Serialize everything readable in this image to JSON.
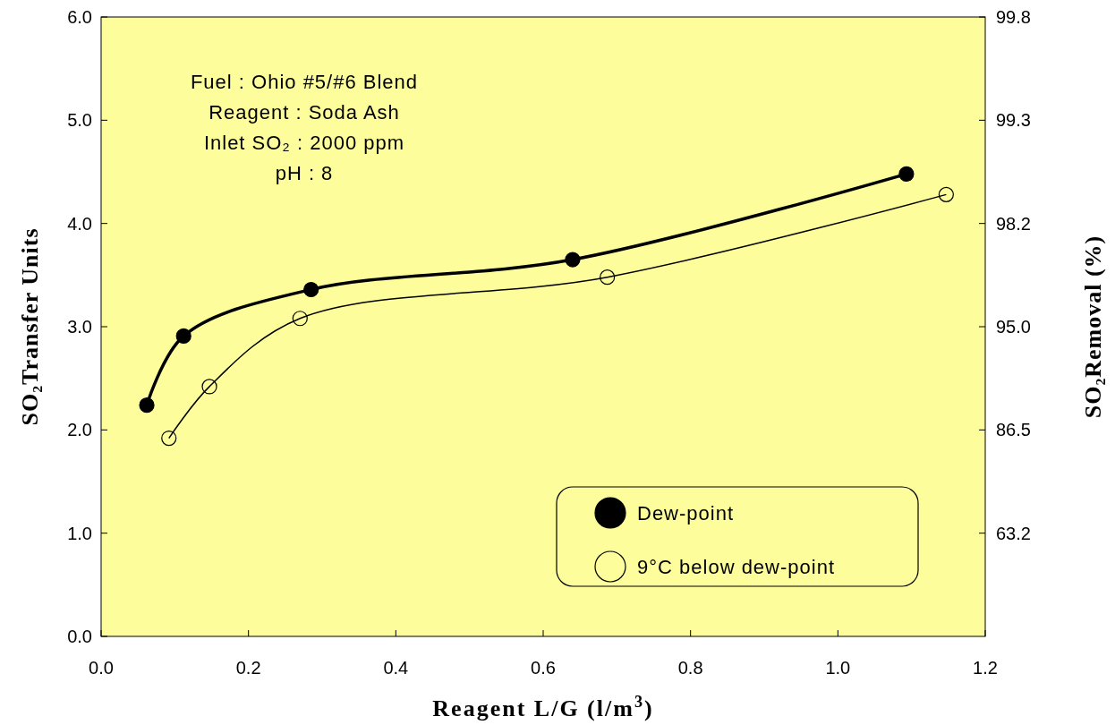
{
  "chart_data": {
    "type": "line",
    "xlabel": "Reagent L/G (l/m$^{3}$)",
    "ylabel": "SO₂Transfer Units",
    "y2label": "SO₂Removal (%)",
    "xlim": [
      0,
      1.2
    ],
    "xticks": [
      {
        "value": 0,
        "label": "0.0"
      },
      {
        "value": 0.2,
        "label": "0.2"
      },
      {
        "value": 0.4,
        "label": "0.4"
      },
      {
        "value": 0.6,
        "label": "0.6"
      },
      {
        "value": 0.8,
        "label": "0.8"
      },
      {
        "value": 1,
        "label": "1.0"
      },
      {
        "value": 1.2,
        "label": "1.2"
      }
    ],
    "ylim": [
      0,
      6
    ],
    "yticks": [
      {
        "value": 0,
        "label": "0.0"
      },
      {
        "value": 1,
        "label": "1.0"
      },
      {
        "value": 2,
        "label": "2.0"
      },
      {
        "value": 3,
        "label": "3.0"
      },
      {
        "value": 4,
        "label": "4.0"
      },
      {
        "value": 5,
        "label": "5.0"
      },
      {
        "value": 6,
        "label": "6.0"
      }
    ],
    "marker": "circle",
    "legend": "bottom right",
    "grid": false,
    "annotations": [
      "Fuel : Ohio #5/#6 Blend",
      "Reagent : Soda Ash",
      "Inlet SO₂ : 2000 ppm",
      "pH : 8",
      "63.2",
      "86.5",
      "95.0",
      "98.2",
      "99.3",
      "99.8"
    ],
    "series": [
      {
        "name": "Dew-point",
        "color": "#000000",
        "x": [
          0.062,
          0.112,
          0.285,
          0.64,
          1.093
        ],
        "values": [
          2.24,
          2.91,
          3.36,
          3.65,
          4.48
        ]
      },
      {
        "name": "9°C below dew-point",
        "color": "#000000",
        "x": [
          0.092,
          0.147,
          0.27,
          0.687,
          1.147
        ],
        "values": [
          1.92,
          2.42,
          3.08,
          3.48,
          4.28
        ]
      }
    ]
  }
}
